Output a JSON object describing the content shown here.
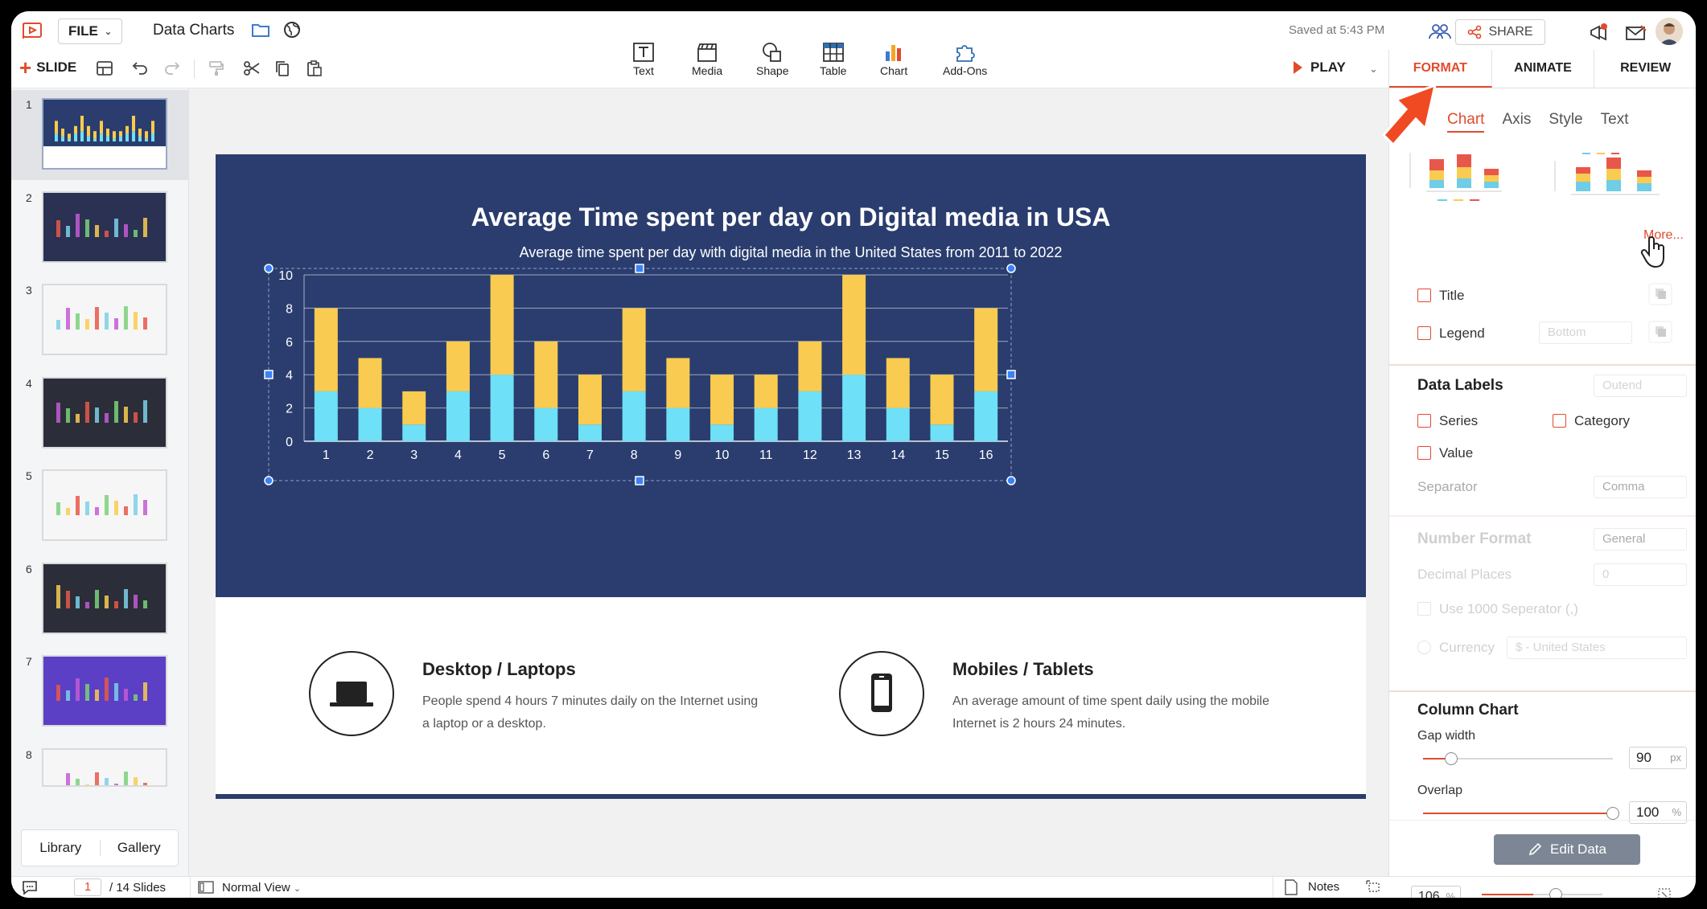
{
  "header": {
    "file_label": "FILE",
    "doc_title": "Data Charts",
    "saved_status": "Saved at 5:43 PM",
    "share_label": "SHARE"
  },
  "toolbar": {
    "add_slide_label": "SLIDE",
    "insert_items": [
      "Text",
      "Media",
      "Shape",
      "Table",
      "Chart",
      "Add-Ons"
    ],
    "play_label": "PLAY"
  },
  "right_panel": {
    "tabs": [
      "FORMAT",
      "ANIMATE",
      "REVIEW"
    ],
    "active_tab": "FORMAT",
    "subtabs": [
      "Chart",
      "Axis",
      "Style",
      "Text"
    ],
    "active_subtab": "Chart",
    "more_link": "More...",
    "title_label": "Title",
    "legend_label": "Legend",
    "legend_position": "Bottom",
    "data_labels_heading": "Data Labels",
    "data_labels_position": "Outend",
    "series_label": "Series",
    "category_label": "Category",
    "value_label": "Value",
    "separator_label": "Separator",
    "separator_value": "Comma",
    "number_format_heading": "Number Format",
    "number_format_value": "General",
    "decimal_places_label": "Decimal Places",
    "decimal_places_value": "0",
    "use_1000_label": "Use 1000 Seperator (,)",
    "currency_label": "Currency",
    "currency_value": "$ - United States",
    "column_chart_heading": "Column Chart",
    "gap_width_label": "Gap width",
    "gap_width_value": "90",
    "gap_width_unit": "px",
    "gap_width_level": 0.15,
    "overlap_label": "Overlap",
    "overlap_value": "100",
    "overlap_unit": "%",
    "overlap_level": 1.0,
    "edit_data_label": "Edit Data"
  },
  "left_panel": {
    "slide_numbers": [
      "1",
      "2",
      "3",
      "4",
      "5",
      "6",
      "7",
      "8"
    ],
    "library_label": "Library",
    "gallery_label": "Gallery"
  },
  "slide": {
    "title": "Average Time spent per day on Digital media in USA",
    "subtitle": "Average time spent per day with digital media in the United States from 2011 to 2022",
    "feature1_title": "Desktop / Laptops",
    "feature1_text": "People spend 4 hours 7 minutes daily on the Internet using a laptop or a desktop.",
    "feature2_title": "Mobiles / Tablets",
    "feature2_text": "An average amount of time spent daily using the mobile Internet is 2 hours 24 minutes."
  },
  "status": {
    "page_number": "1",
    "total_slides": "/ 14 Slides",
    "view_label": "Normal View",
    "notes_label": "Notes",
    "zoom_value": "106",
    "zoom_unit": "%"
  },
  "colors": {
    "accent": "#e14b2d",
    "slide_bg": "#2a3d6e",
    "series_bottom": "#6ee0f7",
    "series_top": "#f9cb50"
  },
  "chart_data": {
    "type": "bar",
    "stacked": true,
    "categories": [
      "1",
      "2",
      "3",
      "4",
      "5",
      "6",
      "7",
      "8",
      "9",
      "10",
      "11",
      "12",
      "13",
      "14",
      "15",
      "16"
    ],
    "series": [
      {
        "values": [
          3,
          2,
          1,
          3,
          4,
          2,
          1,
          3,
          2,
          1,
          2,
          3,
          4,
          2,
          1,
          3
        ]
      },
      {
        "values": [
          5,
          3,
          2,
          3,
          6,
          4,
          3,
          5,
          3,
          3,
          2,
          3,
          6,
          3,
          3,
          5
        ]
      }
    ],
    "ylim": [
      0,
      10
    ],
    "yticks": [
      "0",
      "2",
      "4",
      "6",
      "8",
      "10"
    ],
    "grid": true
  }
}
